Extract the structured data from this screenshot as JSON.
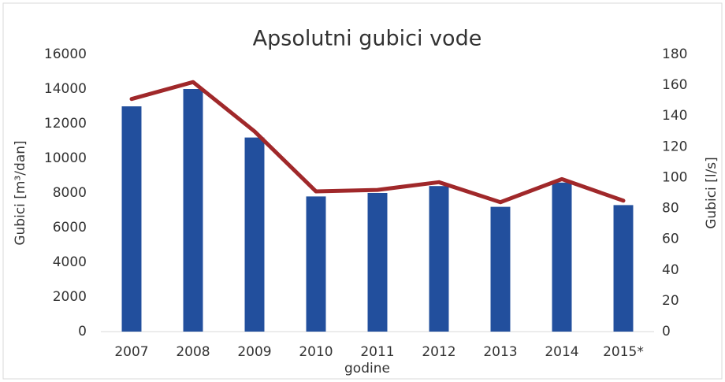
{
  "chart_data": {
    "type": "bar-line",
    "title": "Apsolutni gubici vode",
    "x_label": "godine",
    "y_label": "Gubici [m³/dan]",
    "y2_label": "Gubici [l/s]",
    "categories": [
      "2007",
      "2008",
      "2009",
      "2010",
      "2011",
      "2012",
      "2013",
      "2014",
      "2015*"
    ],
    "series": [
      {
        "name": "Gubici [m³/dan]",
        "type": "bar",
        "color": "#224f9d",
        "values": [
          13000,
          14000,
          11200,
          7800,
          8000,
          8400,
          7200,
          8600,
          7300
        ]
      },
      {
        "name": "Gubici [l/s]",
        "type": "line",
        "axis": "y2",
        "color": "#a0282a",
        "values": [
          151,
          162,
          130,
          91,
          92,
          97,
          84,
          99,
          85
        ]
      }
    ],
    "ylim": [
      0,
      16000
    ],
    "yticks": [
      0,
      2000,
      4000,
      6000,
      8000,
      10000,
      12000,
      14000,
      16000
    ],
    "y2lim": [
      0,
      180
    ],
    "y2ticks": [
      0,
      20,
      40,
      60,
      80,
      100,
      120,
      140,
      160,
      180
    ]
  }
}
